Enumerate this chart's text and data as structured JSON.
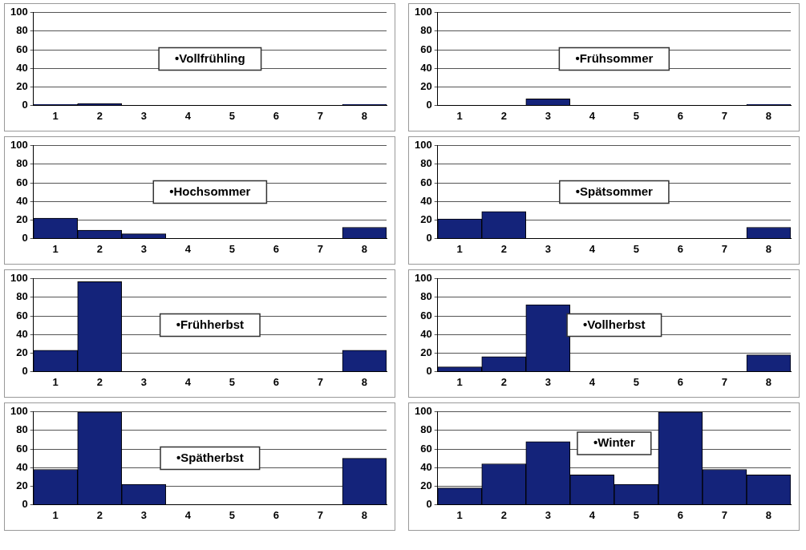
{
  "chart_data": [
    {
      "type": "bar",
      "title": "•Vollfrühling",
      "categories": [
        "1",
        "2",
        "3",
        "4",
        "5",
        "6",
        "7",
        "8"
      ],
      "values": [
        1,
        2,
        0,
        0,
        0,
        0,
        0,
        1
      ],
      "color": "#14237a",
      "ylim": [
        0,
        100
      ],
      "yticks": [
        0,
        20,
        40,
        60,
        80,
        100
      ],
      "grid": "y"
    },
    {
      "type": "bar",
      "title": "•Frühsommer",
      "categories": [
        "1",
        "2",
        "3",
        "4",
        "5",
        "6",
        "7",
        "8"
      ],
      "values": [
        0,
        0,
        7,
        0,
        0,
        0,
        0,
        1
      ],
      "color": "#14237a",
      "ylim": [
        0,
        100
      ],
      "yticks": [
        0,
        20,
        40,
        60,
        80,
        100
      ],
      "grid": "y"
    },
    {
      "type": "bar",
      "title": "•Hochsommer",
      "categories": [
        "1",
        "2",
        "3",
        "4",
        "5",
        "6",
        "7",
        "8"
      ],
      "values": [
        22,
        9,
        5,
        0,
        0,
        0,
        0,
        12
      ],
      "color": "#14237a",
      "ylim": [
        0,
        100
      ],
      "yticks": [
        0,
        20,
        40,
        60,
        80,
        100
      ],
      "grid": "y"
    },
    {
      "type": "bar",
      "title": "•Spätsommer",
      "categories": [
        "1",
        "2",
        "3",
        "4",
        "5",
        "6",
        "7",
        "8"
      ],
      "values": [
        21,
        29,
        0,
        0,
        0,
        0,
        0,
        12
      ],
      "color": "#14237a",
      "ylim": [
        0,
        100
      ],
      "yticks": [
        0,
        20,
        40,
        60,
        80,
        100
      ],
      "grid": "y"
    },
    {
      "type": "bar",
      "title": "•Frühherbst",
      "categories": [
        "1",
        "2",
        "3",
        "4",
        "5",
        "6",
        "7",
        "8"
      ],
      "values": [
        23,
        97,
        0,
        0,
        0,
        0,
        0,
        23
      ],
      "color": "#14237a",
      "ylim": [
        0,
        100
      ],
      "yticks": [
        0,
        20,
        40,
        60,
        80,
        100
      ],
      "grid": "y"
    },
    {
      "type": "bar",
      "title": "•Vollherbst",
      "categories": [
        "1",
        "2",
        "3",
        "4",
        "5",
        "6",
        "7",
        "8"
      ],
      "values": [
        5,
        16,
        72,
        0,
        0,
        0,
        0,
        18
      ],
      "color": "#14237a",
      "ylim": [
        0,
        100
      ],
      "yticks": [
        0,
        20,
        40,
        60,
        80,
        100
      ],
      "grid": "y"
    },
    {
      "type": "bar",
      "title": "•Spätherbst",
      "categories": [
        "1",
        "2",
        "3",
        "4",
        "5",
        "6",
        "7",
        "8"
      ],
      "values": [
        38,
        100,
        22,
        0,
        0,
        0,
        0,
        50
      ],
      "color": "#14237a",
      "ylim": [
        0,
        100
      ],
      "yticks": [
        0,
        20,
        40,
        60,
        80,
        100
      ],
      "grid": "y"
    },
    {
      "type": "bar",
      "title": "•Winter",
      "categories": [
        "1",
        "2",
        "3",
        "4",
        "5",
        "6",
        "7",
        "8"
      ],
      "values": [
        18,
        44,
        68,
        32,
        22,
        100,
        38,
        32
      ],
      "color": "#14237a",
      "ylim": [
        0,
        100
      ],
      "yticks": [
        0,
        20,
        40,
        60,
        80,
        100
      ],
      "grid": "y"
    }
  ]
}
